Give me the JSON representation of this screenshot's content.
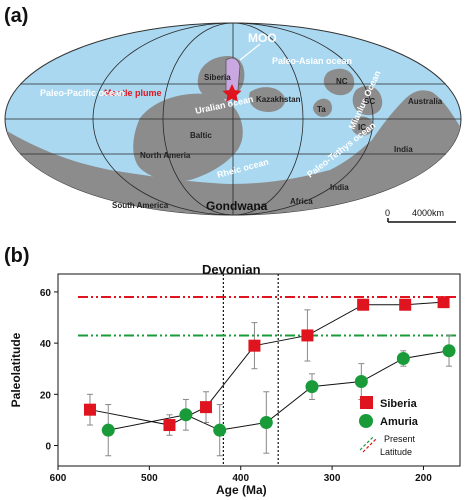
{
  "panel_a": {
    "label": "(a)",
    "oceans": [
      "Paleo-Pacific ocean",
      "Paleo-Asian ocean",
      "Uralian ocean",
      "Rheic ocean",
      "Paleo-Tethys ocean",
      "Mianlue Ocean"
    ],
    "landmasses": [
      "Siberia",
      "Kazakhstan",
      "Baltic",
      "North Ameria",
      "South America",
      "Gondwana",
      "Africa",
      "India",
      "India",
      "Australia",
      "NC",
      "SC",
      "IC",
      "Ta"
    ],
    "callouts": {
      "moo": "MOO",
      "plume": "Mantle plume"
    },
    "scale": {
      "zero": "0",
      "distance": "4000km"
    },
    "colors": {
      "ocean": "#a9d8f0",
      "land": "#8c8c8c",
      "plume": "#e0141e",
      "moo": "#c9a7e0"
    }
  },
  "panel_b": {
    "label": "(b)",
    "period_label": "Devonian",
    "xlabel": "Age (Ma)",
    "ylabel": "Paleolatitude",
    "xticks": [
      "600",
      "500",
      "400",
      "300",
      "200"
    ],
    "yticks": [
      "0",
      "20",
      "40",
      "60"
    ],
    "legend": {
      "siberia": "Siberia",
      "amuria": "Amuria",
      "present": "Present",
      "latitude": "Latitude"
    }
  },
  "chart_data": {
    "type": "scatter",
    "xlabel": "Age (Ma)",
    "ylabel": "Paleolatitude",
    "xlim": [
      600,
      160
    ],
    "ylim": [
      -8,
      67
    ],
    "x_reversed": true,
    "devonian_range": [
      419,
      359
    ],
    "series": [
      {
        "name": "Siberia",
        "marker": "square",
        "color": "#e0141e",
        "points": [
          {
            "x": 565,
            "y": 14,
            "err": 6
          },
          {
            "x": 478,
            "y": 8,
            "err": 4
          },
          {
            "x": 438,
            "y": 15,
            "err": 6
          },
          {
            "x": 385,
            "y": 39,
            "err": 9
          },
          {
            "x": 327,
            "y": 43,
            "err": 10
          },
          {
            "x": 266,
            "y": 55,
            "err": 2
          },
          {
            "x": 220,
            "y": 55,
            "err": 2
          },
          {
            "x": 178,
            "y": 56,
            "err": 2
          }
        ],
        "present_latitude": 58
      },
      {
        "name": "Amuria",
        "marker": "circle",
        "color": "#1a9b3a",
        "points": [
          {
            "x": 545,
            "y": 6,
            "err": 10
          },
          {
            "x": 460,
            "y": 12,
            "err": 6
          },
          {
            "x": 423,
            "y": 6,
            "err": 10
          },
          {
            "x": 372,
            "y": 9,
            "err": 12
          },
          {
            "x": 322,
            "y": 23,
            "err": 5
          },
          {
            "x": 268,
            "y": 25,
            "err": 7
          },
          {
            "x": 222,
            "y": 34,
            "err": 3
          },
          {
            "x": 172,
            "y": 37,
            "err": 6
          }
        ],
        "present_latitude": 43
      }
    ]
  }
}
